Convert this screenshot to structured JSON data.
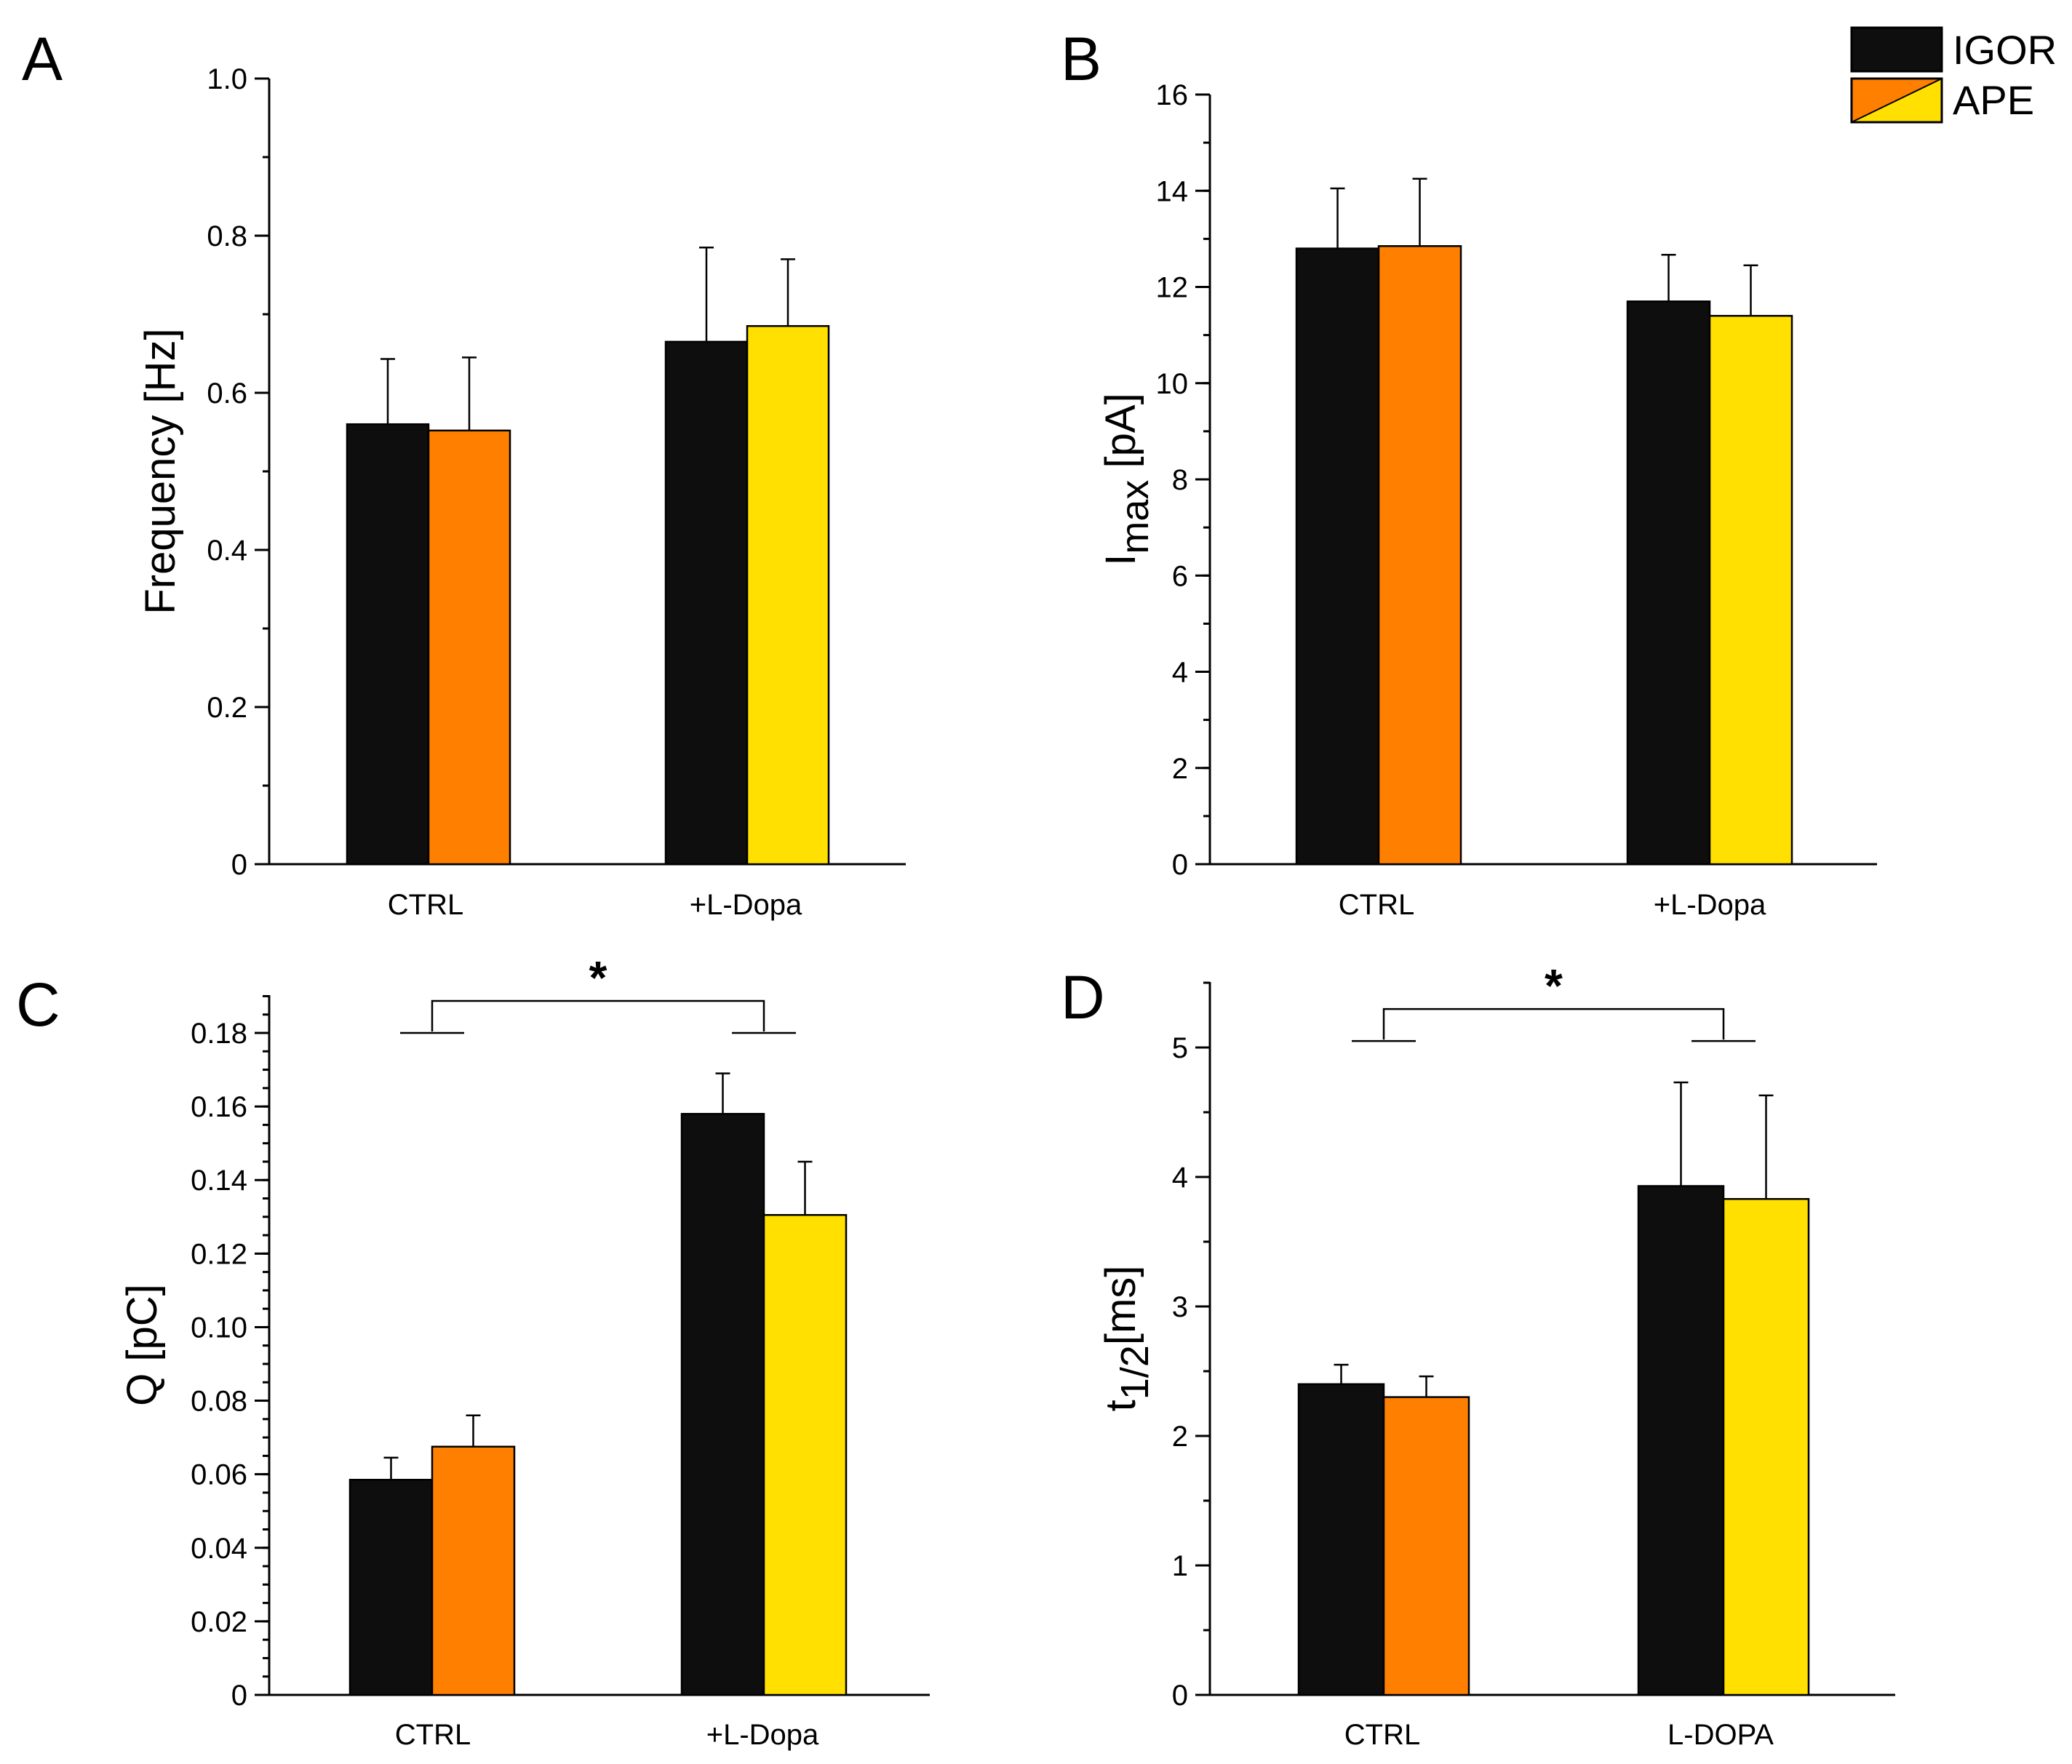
{
  "legend": {
    "items": [
      {
        "label": "IGOR",
        "color": "#0d0e0d"
      },
      {
        "label": "APE",
        "color": "#ff7f00",
        "color2": "#ffe000"
      }
    ]
  },
  "colors": {
    "igor": "#0d0e0d",
    "ape_ctrl": "#ff7f00",
    "ape_ldopa": "#ffe000"
  },
  "chart_data": [
    {
      "panel": "A",
      "type": "bar",
      "ylabel": "Frequency [Hz]",
      "categories": [
        "CTRL",
        "+L-Dopa"
      ],
      "ylim": [
        0,
        1.0
      ],
      "yticks": [
        "0",
        "0.2",
        "0.4",
        "0.6",
        "0.8",
        "1.0"
      ],
      "yticks_values": [
        0,
        0.2,
        0.4,
        0.6,
        0.8,
        1.0
      ],
      "minor_step": 0.1,
      "series": [
        {
          "name": "IGOR",
          "values": [
            0.56,
            0.665
          ],
          "errors": [
            0.083,
            0.12
          ]
        },
        {
          "name": "APE",
          "values": [
            0.552,
            0.685
          ],
          "errors": [
            0.093,
            0.085
          ]
        }
      ]
    },
    {
      "panel": "B",
      "type": "bar",
      "ylabel": "Imax [pA]",
      "ylabel_main": "I",
      "ylabel_sub": "max",
      "ylabel_tail": " [pA]",
      "categories": [
        "CTRL",
        "+L-Dopa"
      ],
      "ylim": [
        0,
        16
      ],
      "yticks": [
        "0",
        "2",
        "4",
        "6",
        "8",
        "10",
        "12",
        "14",
        "16"
      ],
      "yticks_values": [
        0,
        2,
        4,
        6,
        8,
        10,
        12,
        14,
        16
      ],
      "minor_step": 1,
      "series": [
        {
          "name": "IGOR",
          "values": [
            12.8,
            11.7
          ],
          "errors": [
            1.25,
            0.97
          ]
        },
        {
          "name": "APE",
          "values": [
            12.85,
            11.4
          ],
          "errors": [
            1.4,
            1.05
          ]
        }
      ]
    },
    {
      "panel": "C",
      "type": "bar",
      "ylabel": "Q [pC]",
      "categories": [
        "CTRL",
        "+L-Dopa"
      ],
      "ylim": [
        0,
        0.19
      ],
      "yticks": [
        "0",
        "0.02",
        "0.04",
        "0.06",
        "0.08",
        "0.10",
        "0.12",
        "0.14",
        "0.16",
        "0.18"
      ],
      "yticks_values": [
        0,
        0.02,
        0.04,
        0.06,
        0.08,
        0.1,
        0.12,
        0.14,
        0.16,
        0.18
      ],
      "minor_step": 0.005,
      "series": [
        {
          "name": "IGOR",
          "values": [
            0.0585,
            0.158
          ],
          "errors": [
            0.006,
            0.011
          ]
        },
        {
          "name": "APE",
          "values": [
            0.0675,
            0.1305
          ],
          "errors": [
            0.0085,
            0.0145
          ]
        }
      ],
      "significance": {
        "label": "*",
        "level": 0.18
      }
    },
    {
      "panel": "D",
      "type": "bar",
      "ylabel": "t1/2[ms]",
      "ylabel_main": "t",
      "ylabel_sub": "1/2",
      "ylabel_tail": "[ms]",
      "categories": [
        "CTRL",
        "L-DOPA"
      ],
      "ylim": [
        0,
        5.5
      ],
      "yticks": [
        "0",
        "1",
        "2",
        "3",
        "4",
        "5"
      ],
      "yticks_values": [
        0,
        1,
        2,
        3,
        4,
        5
      ],
      "minor_step": 0.5,
      "series": [
        {
          "name": "IGOR",
          "values": [
            2.4,
            3.93
          ],
          "errors": [
            0.15,
            0.8
          ]
        },
        {
          "name": "APE",
          "values": [
            2.3,
            3.83
          ],
          "errors": [
            0.16,
            0.8
          ]
        }
      ],
      "significance": {
        "label": "*",
        "level": 5.05
      }
    }
  ]
}
